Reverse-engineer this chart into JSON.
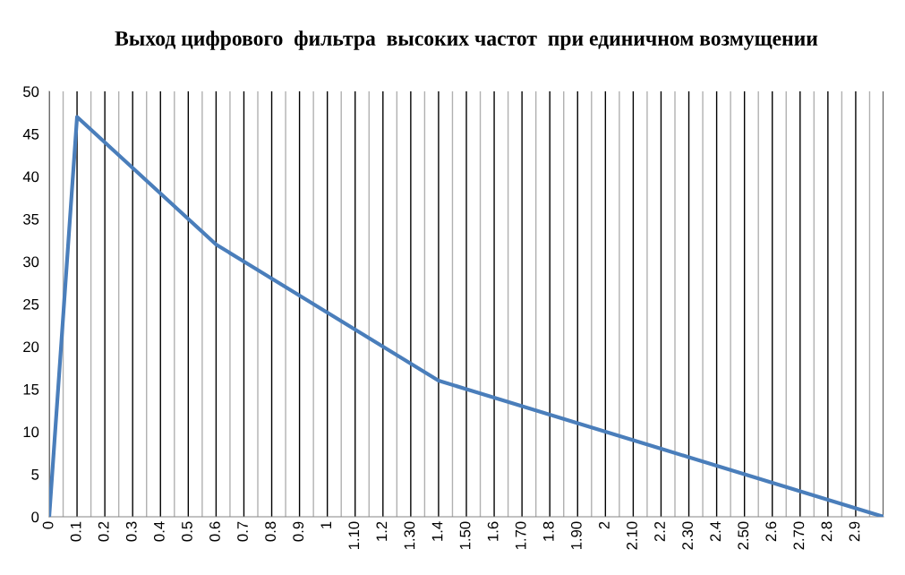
{
  "chart_data": {
    "type": "line",
    "title": "Выход цифрового  фильтра  высоких частот  при единичном возмущении",
    "categories": [
      "0",
      "0.1",
      "0.2",
      "0.3",
      "0.4",
      "0.5",
      "0.6",
      "0.7",
      "0.8",
      "0.9",
      "1",
      "1.10",
      "1.2",
      "1.30",
      "1.4",
      "1.50",
      "1.6",
      "1.70",
      "1.8",
      "1.90",
      "2",
      "2.10",
      "2.2",
      "2.30",
      "2.4",
      "2.50",
      "2.6",
      "2.70",
      "2.8",
      "2.9",
      null
    ],
    "series": [
      {
        "color": "#4a7ebb",
        "values": [
          0,
          47,
          44,
          41,
          38,
          35,
          32,
          30,
          28,
          26,
          24,
          22,
          20,
          18,
          16,
          15,
          14,
          13,
          12,
          11,
          10,
          9,
          8,
          7,
          6,
          5,
          4,
          3,
          2,
          1,
          0
        ]
      }
    ],
    "ylim": [
      0,
      50
    ],
    "yticks": [
      0,
      5,
      10,
      15,
      20,
      25,
      30,
      35,
      40,
      45,
      50
    ],
    "grid": "x",
    "legend": false,
    "marker": "none",
    "line_style": "solid"
  }
}
